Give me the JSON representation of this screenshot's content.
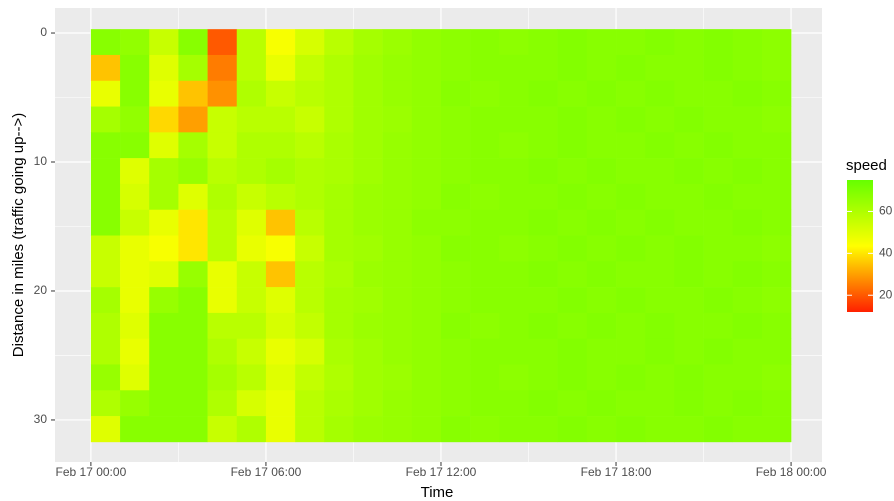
{
  "chart_data": {
    "type": "heatmap",
    "x_label": "Time",
    "y_label": "Distance in miles (traffic going up-->)",
    "legend_title": "speed",
    "xlim": [
      -1.23,
      25.06
    ],
    "xticks": [
      {
        "value": 0,
        "label": "Feb 17 00:00"
      },
      {
        "value": 6,
        "label": "Feb 17 06:00"
      },
      {
        "value": 12,
        "label": "Feb 17 12:00"
      },
      {
        "value": 18,
        "label": "Feb 17 18:00"
      },
      {
        "value": 24,
        "label": "Feb 18 00:00"
      }
    ],
    "ylim": [
      -1.94,
      33.26
    ],
    "y_reversed": true,
    "yticks": [
      0,
      10,
      20,
      30
    ],
    "grid": true,
    "colorscale": [
      "#ff2000",
      "#ffff00",
      "#66ff00"
    ],
    "colorlim": [
      12,
      75
    ],
    "colorticks": [
      20,
      40,
      60
    ],
    "x": [
      0.5,
      1.5,
      2.5,
      3.5,
      4.5,
      5.5,
      6.5,
      7.5,
      8.5,
      9.5,
      10.5,
      11.5,
      12.5,
      13.5,
      14.5,
      15.5,
      16.5,
      17.5,
      18.5,
      19.5,
      20.5,
      21.5,
      22.5,
      23.5
    ],
    "y": [
      0.7,
      2.7,
      4.7,
      6.7,
      8.7,
      10.7,
      12.7,
      14.7,
      16.7,
      18.7,
      20.7,
      22.7,
      24.7,
      26.7,
      28.7,
      30.7
    ],
    "values": [
      [
        68,
        66,
        55,
        68,
        20,
        58,
        45,
        52,
        58,
        62,
        64,
        66,
        67,
        68,
        67,
        68,
        69,
        68,
        68,
        69,
        68,
        69,
        68,
        67
      ],
      [
        35,
        68,
        50,
        62,
        25,
        58,
        48,
        56,
        60,
        63,
        65,
        66,
        67,
        68,
        68,
        68,
        69,
        68,
        69,
        68,
        68,
        69,
        68,
        67
      ],
      [
        48,
        68,
        48,
        35,
        28,
        60,
        55,
        58,
        60,
        63,
        65,
        66,
        68,
        67,
        68,
        69,
        68,
        69,
        68,
        69,
        68,
        68,
        69,
        68
      ],
      [
        62,
        66,
        38,
        30,
        55,
        58,
        58,
        55,
        60,
        63,
        64,
        66,
        67,
        68,
        68,
        68,
        69,
        68,
        69,
        68,
        69,
        68,
        68,
        67
      ],
      [
        68,
        68,
        50,
        62,
        55,
        60,
        60,
        58,
        61,
        63,
        65,
        66,
        67,
        68,
        67,
        68,
        69,
        68,
        68,
        69,
        68,
        69,
        68,
        68
      ],
      [
        68,
        50,
        62,
        65,
        58,
        60,
        62,
        60,
        61,
        63,
        65,
        66,
        67,
        68,
        68,
        69,
        68,
        69,
        68,
        68,
        69,
        68,
        69,
        68
      ],
      [
        68,
        52,
        62,
        50,
        60,
        55,
        58,
        60,
        62,
        64,
        65,
        66,
        68,
        67,
        68,
        68,
        69,
        68,
        69,
        68,
        68,
        69,
        68,
        68
      ],
      [
        68,
        55,
        48,
        40,
        58,
        50,
        35,
        58,
        62,
        64,
        65,
        67,
        67,
        68,
        68,
        69,
        68,
        69,
        68,
        69,
        68,
        68,
        69,
        68
      ],
      [
        55,
        48,
        45,
        40,
        58,
        48,
        45,
        55,
        62,
        63,
        65,
        66,
        68,
        68,
        67,
        68,
        69,
        68,
        69,
        68,
        69,
        68,
        68,
        67
      ],
      [
        55,
        48,
        50,
        65,
        48,
        55,
        35,
        58,
        61,
        64,
        65,
        66,
        67,
        68,
        68,
        69,
        68,
        69,
        68,
        68,
        69,
        68,
        69,
        68
      ],
      [
        62,
        48,
        65,
        68,
        48,
        55,
        50,
        58,
        62,
        63,
        65,
        66,
        67,
        68,
        68,
        68,
        69,
        68,
        69,
        68,
        68,
        69,
        68,
        67
      ],
      [
        60,
        50,
        68,
        68,
        58,
        58,
        52,
        56,
        62,
        64,
        65,
        66,
        68,
        67,
        68,
        69,
        68,
        69,
        68,
        69,
        68,
        68,
        69,
        68
      ],
      [
        60,
        48,
        68,
        68,
        60,
        55,
        48,
        52,
        61,
        63,
        65,
        66,
        67,
        68,
        68,
        68,
        69,
        68,
        68,
        69,
        68,
        69,
        68,
        68
      ],
      [
        65,
        50,
        68,
        68,
        62,
        58,
        50,
        56,
        60,
        63,
        64,
        66,
        67,
        68,
        67,
        68,
        69,
        68,
        69,
        68,
        69,
        68,
        68,
        67
      ],
      [
        60,
        65,
        68,
        68,
        60,
        52,
        48,
        58,
        61,
        63,
        65,
        66,
        67,
        68,
        68,
        69,
        68,
        69,
        68,
        68,
        69,
        68,
        69,
        68
      ],
      [
        50,
        68,
        68,
        68,
        55,
        60,
        48,
        58,
        62,
        64,
        65,
        66,
        68,
        67,
        68,
        68,
        69,
        68,
        69,
        68,
        68,
        69,
        68,
        68
      ]
    ]
  }
}
